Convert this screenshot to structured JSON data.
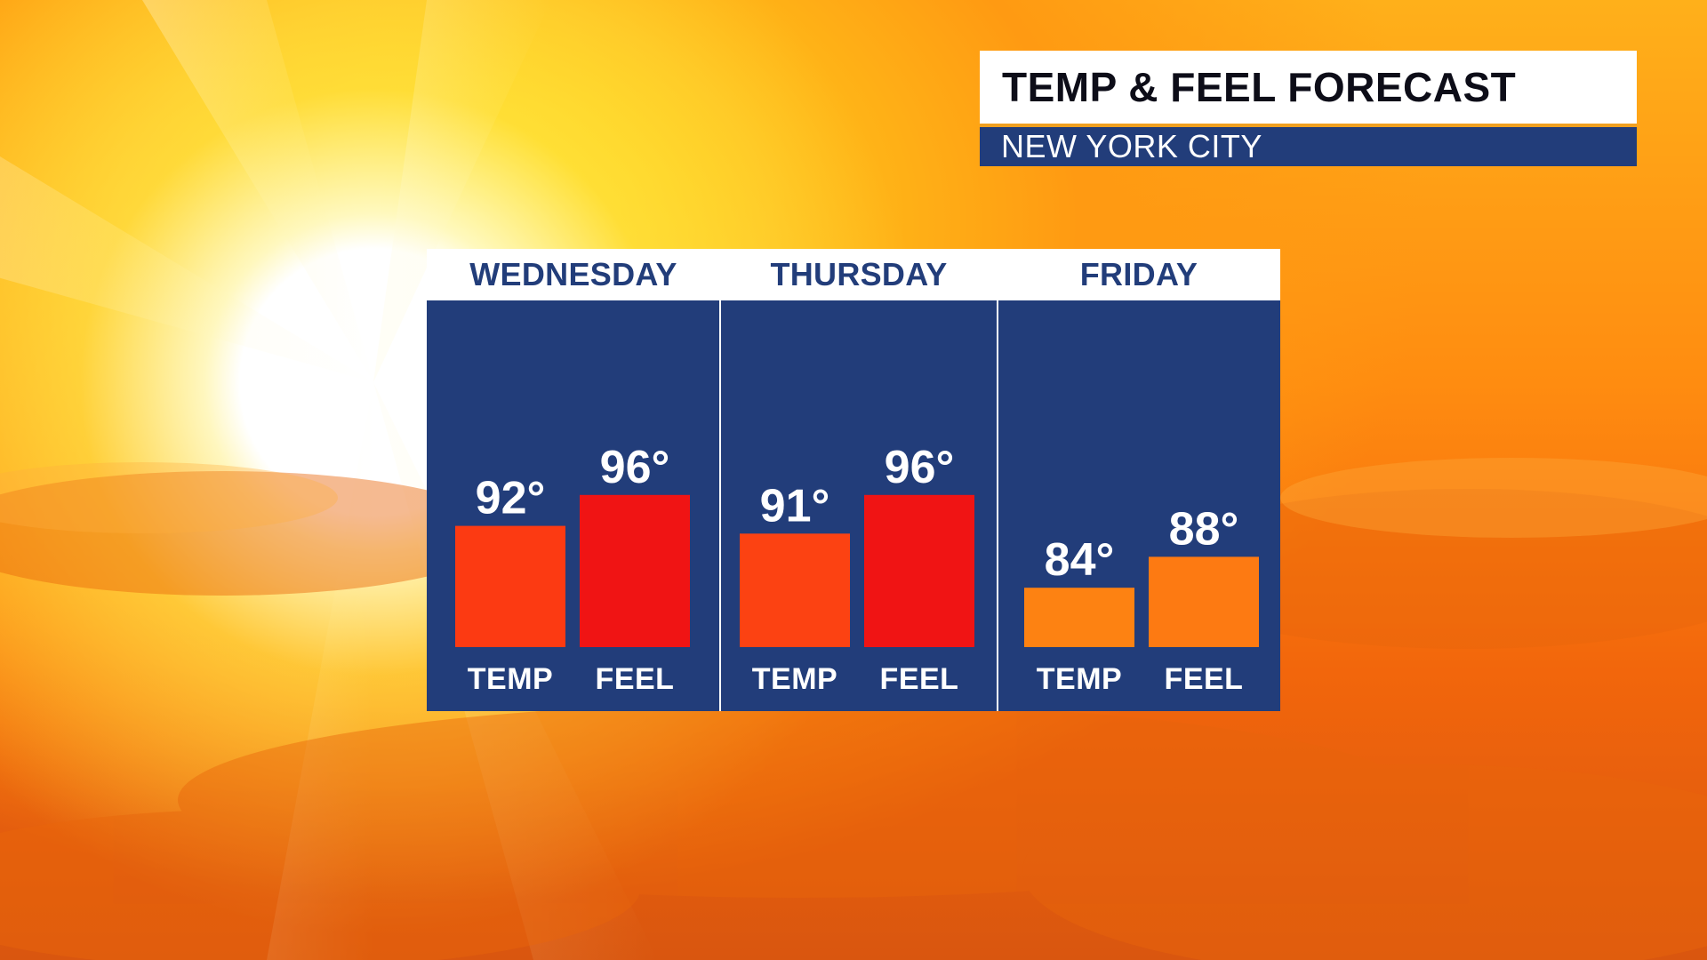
{
  "title": "TEMP & FEEL FORECAST",
  "subtitle": "NEW YORK CITY",
  "colors": {
    "header_blue": "#223d7a",
    "bar_red_orange": "#fc3a12",
    "bar_red": "#f01414",
    "bar_orange": "#fd8212",
    "title_accent": "#f0a020"
  },
  "chart_data": {
    "type": "bar",
    "categories": [
      "TEMP",
      "FEEL"
    ],
    "ylabel": "",
    "xlabel": "",
    "groups": [
      {
        "day": "WEDNESDAY",
        "bars": [
          {
            "label": "TEMP",
            "value": 92,
            "display": "92°",
            "color": "#fc3a12"
          },
          {
            "label": "FEEL",
            "value": 96,
            "display": "96°",
            "color": "#f01414"
          }
        ]
      },
      {
        "day": "THURSDAY",
        "bars": [
          {
            "label": "TEMP",
            "value": 91,
            "display": "91°",
            "color": "#fc4212"
          },
          {
            "label": "FEEL",
            "value": 96,
            "display": "96°",
            "color": "#f01414"
          }
        ]
      },
      {
        "day": "FRIDAY",
        "bars": [
          {
            "label": "TEMP",
            "value": 84,
            "display": "84°",
            "color": "#fd8212"
          },
          {
            "label": "FEEL",
            "value": 88,
            "display": "88°",
            "color": "#fd7a12"
          }
        ]
      }
    ]
  }
}
